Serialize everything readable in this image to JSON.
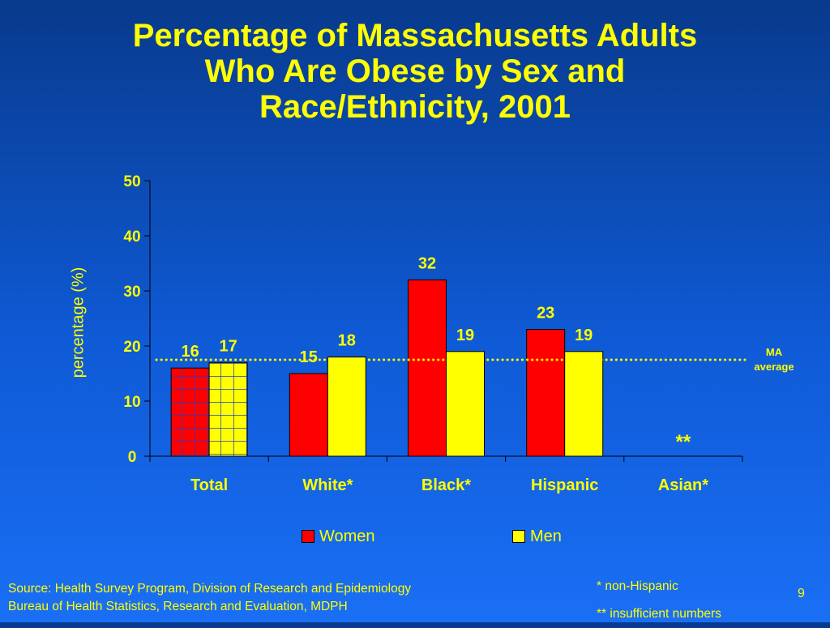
{
  "slide": {
    "title_lines": [
      "Percentage of Massachusetts Adults",
      "Who Are Obese by Sex and",
      "Race/Ethnicity, 2001"
    ],
    "ma_average_label": [
      "MA",
      "average"
    ],
    "source_lines": [
      "Source: Health Survey Program, Division of Research and Epidemiology",
      "Bureau of Health Statistics, Research and Evaluation, MDPH"
    ],
    "notes": [
      "* non-Hispanic",
      "** insufficient numbers"
    ],
    "page_number": "9",
    "colors": {
      "background_top": "#083a8c",
      "background_bottom": "#1a6ff5",
      "text": "#ffff00",
      "women": "#ff0000",
      "men": "#ffff00"
    }
  },
  "chart_data": {
    "type": "bar",
    "title": "Percentage of Massachusetts Adults Who Are Obese by Sex and Race/Ethnicity, 2001",
    "ylabel": "percentage (%)",
    "xlabel": "",
    "ylim": [
      0,
      50
    ],
    "yticks": [
      0,
      10,
      20,
      30,
      40,
      50
    ],
    "categories": [
      "Total",
      "White*",
      "Black*",
      "Hispanic",
      "Asian*"
    ],
    "series": [
      {
        "name": "Women",
        "values": [
          16,
          15,
          32,
          23,
          null
        ],
        "labels": [
          "16",
          "15",
          "32",
          "23",
          ""
        ],
        "color": "#ff0000"
      },
      {
        "name": "Men",
        "values": [
          17,
          18,
          19,
          19,
          null
        ],
        "labels": [
          "17",
          "18",
          "19",
          "19",
          ""
        ],
        "color": "#ffff00"
      }
    ],
    "reference_line": {
      "label": "MA average",
      "value": 17.5,
      "style": "dotted"
    },
    "annotations": [
      {
        "category": "Asian*",
        "text": "**"
      }
    ],
    "highlight_category": "Total",
    "legend_position": "bottom",
    "grid": false
  }
}
